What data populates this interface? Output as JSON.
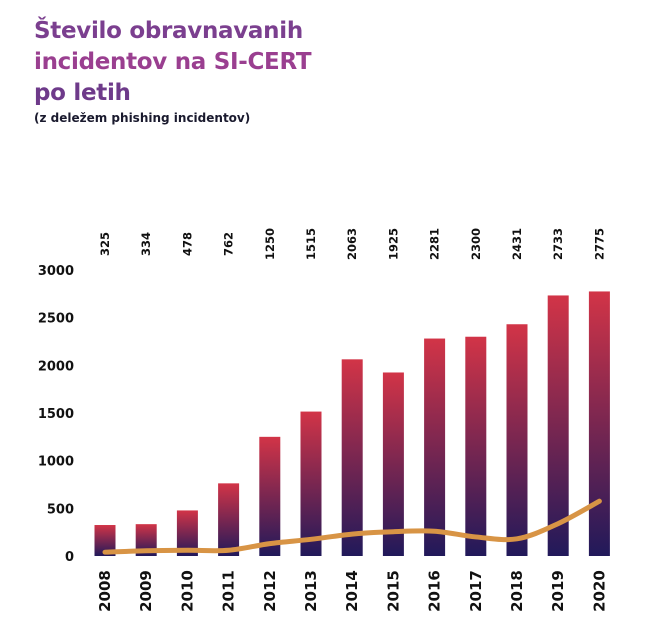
{
  "title_lines": [
    "Število obravnavanih",
    "incidentov na SI-CERT",
    "po letih"
  ],
  "subtitle": "(z deležem phishing incidentov)",
  "colors": {
    "title": "#7b3f8f",
    "bar_top": "#d23447",
    "bar_bottom": "#21195a",
    "line": "#d89445"
  },
  "chart_data": {
    "type": "bar",
    "categories": [
      "2008",
      "2009",
      "2010",
      "2011",
      "2012",
      "2013",
      "2014",
      "2015",
      "2016",
      "2017",
      "2018",
      "2019",
      "2020"
    ],
    "series": [
      {
        "values": [
          325,
          334,
          478,
          762,
          1250,
          1515,
          2063,
          1925,
          2281,
          2300,
          2431,
          2733,
          2775
        ]
      },
      {
        "type": "line",
        "values": [
          40,
          55,
          60,
          60,
          130,
          175,
          230,
          255,
          260,
          200,
          180,
          340,
          575
        ]
      }
    ],
    "data_labels": [
      "325",
      "334",
      "478",
      "762",
      "1250",
      "1515",
      "2063",
      "1925",
      "2281",
      "2300",
      "2431",
      "2733",
      "2775"
    ],
    "yticks": [
      0,
      500,
      1000,
      1500,
      2000,
      2500,
      3000
    ],
    "ylim": [
      0,
      3000
    ],
    "xlabel": "",
    "ylabel": "",
    "grid": false
  }
}
